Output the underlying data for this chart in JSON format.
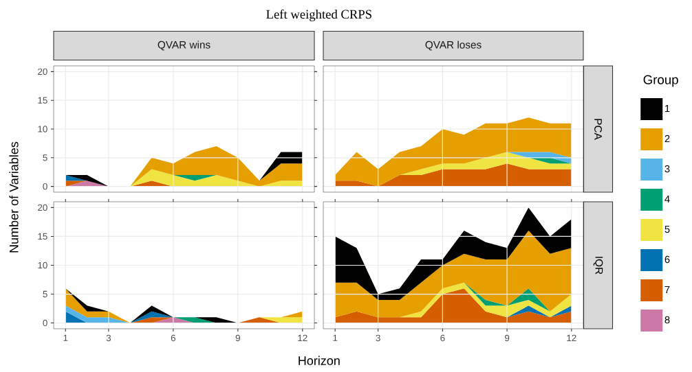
{
  "chart_data": [
    {
      "type": "area",
      "title": "QVAR wins",
      "ylabel": "Number of Variables",
      "annotations": [
        "Left weighted CRPS"
      ],
      "stacked": true,
      "grid": true,
      "tick_labels": "y",
      "x": [
        1,
        2,
        3,
        4,
        5,
        6,
        7,
        8,
        9,
        10,
        11,
        12
      ],
      "xlim": [
        0.45,
        12.55
      ],
      "ylim": [
        -1,
        21
      ],
      "xticks": [
        1,
        3,
        6,
        9,
        12
      ],
      "yticks": [
        0,
        5,
        10,
        15,
        20
      ],
      "series": [
        {
          "color": "#cc79a7",
          "values": [
            0,
            1,
            0,
            null,
            null,
            null,
            null,
            null,
            null,
            null,
            null,
            null
          ]
        },
        {
          "color": "#d55e00",
          "values": [
            1,
            0,
            null,
            0,
            1,
            0,
            null,
            null,
            null,
            null,
            null,
            null
          ]
        },
        {
          "color": "#0072b2",
          "values": [
            1,
            0,
            null,
            null,
            null,
            null,
            null,
            null,
            null,
            null,
            null,
            null
          ]
        },
        {
          "color": "#f0e442",
          "values": [
            null,
            null,
            null,
            0,
            2,
            2,
            1,
            2,
            1,
            0,
            1,
            1
          ]
        },
        {
          "color": "#009e73",
          "values": [
            null,
            null,
            null,
            null,
            null,
            0,
            1,
            0,
            null,
            null,
            null,
            null
          ]
        },
        {
          "color": "#e69f00",
          "values": [
            null,
            null,
            null,
            0,
            2,
            2,
            4,
            5,
            4,
            1,
            3,
            3
          ]
        },
        {
          "color": "#000000",
          "values": [
            0,
            1,
            0,
            null,
            null,
            null,
            null,
            null,
            null,
            0,
            2,
            2
          ]
        }
      ]
    },
    {
      "type": "area",
      "title": "QVAR loses",
      "y2label": "PCA",
      "stacked": true,
      "grid": true,
      "tick_labels": false,
      "x": [
        1,
        2,
        3,
        4,
        5,
        6,
        7,
        8,
        9,
        10,
        11,
        12
      ],
      "xlim": [
        0.45,
        12.55
      ],
      "ylim": [
        -1,
        21
      ],
      "xticks": [
        1,
        3,
        6,
        9,
        12
      ],
      "yticks": [
        0,
        5,
        10,
        15,
        20
      ],
      "series": [
        {
          "color": "#d55e00",
          "values": [
            1,
            1,
            0,
            2,
            2,
            3,
            3,
            3,
            4,
            3,
            3,
            3
          ]
        },
        {
          "color": "#f0e442",
          "values": [
            null,
            null,
            null,
            0,
            1,
            1,
            1,
            2,
            2,
            2,
            1,
            1
          ]
        },
        {
          "color": "#009e73",
          "values": [
            null,
            null,
            null,
            null,
            null,
            null,
            null,
            null,
            null,
            0,
            1,
            0
          ]
        },
        {
          "color": "#56b4e9",
          "values": [
            null,
            null,
            null,
            null,
            null,
            null,
            null,
            null,
            0,
            1,
            1,
            1
          ]
        },
        {
          "color": "#e69f00",
          "values": [
            1,
            5,
            3,
            4,
            4,
            6,
            5,
            6,
            5,
            6,
            5,
            6
          ]
        }
      ]
    },
    {
      "type": "area",
      "xlabel": "Horizon",
      "legend_title": "Group",
      "legend": "right",
      "stacked": true,
      "grid": true,
      "x": [
        1,
        2,
        3,
        4,
        5,
        6,
        7,
        8,
        9,
        10,
        11,
        12
      ],
      "xlim": [
        0.45,
        12.55
      ],
      "ylim": [
        -1,
        21
      ],
      "xticks": [
        1,
        3,
        6,
        9,
        12
      ],
      "yticks": [
        0,
        5,
        10,
        15,
        20
      ],
      "series": [
        {
          "name": "8",
          "color": "#cc79a7",
          "values": [
            null,
            null,
            null,
            null,
            0,
            1,
            0,
            null,
            null,
            null,
            null,
            null
          ]
        },
        {
          "name": "7",
          "color": "#d55e00",
          "values": [
            null,
            null,
            null,
            0,
            1,
            0,
            null,
            null,
            0,
            1,
            0,
            null
          ]
        },
        {
          "name": "6",
          "color": "#0072b2",
          "values": [
            2,
            0,
            null,
            0,
            1,
            0,
            null,
            null,
            null,
            null,
            null,
            null
          ]
        },
        {
          "name": "5",
          "color": "#f0e442",
          "values": [
            null,
            null,
            null,
            null,
            null,
            null,
            null,
            null,
            null,
            0,
            1,
            1
          ]
        },
        {
          "name": "4",
          "color": "#009e73",
          "values": [
            null,
            null,
            null,
            null,
            null,
            0,
            1,
            0,
            null,
            null,
            null,
            null
          ]
        },
        {
          "name": "3",
          "color": "#56b4e9",
          "values": [
            1,
            1,
            1,
            0,
            null,
            null,
            null,
            null,
            null,
            null,
            null,
            null
          ]
        },
        {
          "name": "2",
          "color": "#e69f00",
          "values": [
            3,
            1,
            1,
            0,
            null,
            null,
            null,
            null,
            null,
            null,
            0,
            1
          ]
        },
        {
          "name": "1",
          "color": "#000000",
          "values": [
            0,
            1,
            0,
            0,
            1,
            0,
            0,
            1,
            0,
            null,
            null,
            null
          ]
        }
      ]
    },
    {
      "type": "area",
      "y2label": "IQR",
      "stacked": true,
      "grid": true,
      "tick_labels": "x",
      "x": [
        1,
        2,
        3,
        4,
        5,
        6,
        7,
        8,
        9,
        10,
        11,
        12
      ],
      "xlim": [
        0.45,
        12.55
      ],
      "ylim": [
        -1,
        21
      ],
      "xticks": [
        1,
        3,
        6,
        9,
        12
      ],
      "yticks": [
        0,
        5,
        10,
        15,
        20
      ],
      "series": [
        {
          "color": "#d55e00",
          "values": [
            1,
            2,
            1,
            1,
            1,
            5,
            6,
            2,
            1,
            2,
            1,
            2
          ]
        },
        {
          "color": "#0072b2",
          "values": [
            null,
            null,
            null,
            null,
            null,
            null,
            null,
            null,
            0,
            1,
            0,
            1
          ]
        },
        {
          "color": "#f0e442",
          "values": [
            null,
            null,
            null,
            0,
            1,
            1,
            1,
            1,
            2,
            1,
            1,
            2
          ]
        },
        {
          "color": "#009e73",
          "values": [
            null,
            null,
            null,
            null,
            null,
            null,
            0,
            1,
            0,
            2,
            0,
            null
          ]
        },
        {
          "color": "#e69f00",
          "values": [
            6,
            5,
            3,
            3,
            5,
            4,
            5,
            7,
            8,
            10,
            10,
            8
          ]
        },
        {
          "color": "#000000",
          "values": [
            8,
            6,
            1,
            2,
            4,
            1,
            4,
            3,
            2,
            4,
            3,
            5
          ]
        }
      ]
    }
  ]
}
